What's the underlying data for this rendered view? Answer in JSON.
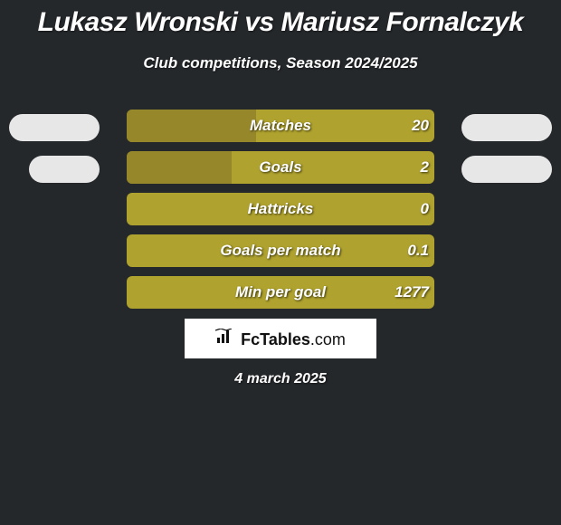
{
  "background_color": "#25282b",
  "text_color": "#ffffff",
  "title": "Lukasz Wronski vs Mariusz Fornalczyk",
  "subtitle": "Club competitions, Season 2024/2025",
  "date": "4 march 2025",
  "brand": {
    "icon_name": "bar-chart-icon",
    "text_prefix": "Fc",
    "text_main": "Tables",
    "text_suffix": ".com"
  },
  "chart": {
    "type": "bar",
    "bar_bg_color": "#afa22e",
    "bar_fill_color": "#97872b",
    "left_pill_color": "#e7e7e7",
    "right_pill_color": "#e7e7e7",
    "font_size": 17,
    "font_weight": 700,
    "rows": [
      {
        "label": "Matches",
        "value": "20",
        "fill_pct": 42,
        "show_left_pill": true,
        "show_right_pill": true,
        "left_pill_width": 100,
        "right_pill_width": 100
      },
      {
        "label": "Goals",
        "value": "2",
        "fill_pct": 34,
        "show_left_pill": true,
        "show_right_pill": true,
        "left_pill_width": 78,
        "right_pill_width": 100
      },
      {
        "label": "Hattricks",
        "value": "0",
        "fill_pct": 0,
        "show_left_pill": false,
        "show_right_pill": false
      },
      {
        "label": "Goals per match",
        "value": "0.1",
        "fill_pct": 0,
        "show_left_pill": false,
        "show_right_pill": false
      },
      {
        "label": "Min per goal",
        "value": "1277",
        "fill_pct": 0,
        "show_left_pill": false,
        "show_right_pill": false
      }
    ]
  }
}
